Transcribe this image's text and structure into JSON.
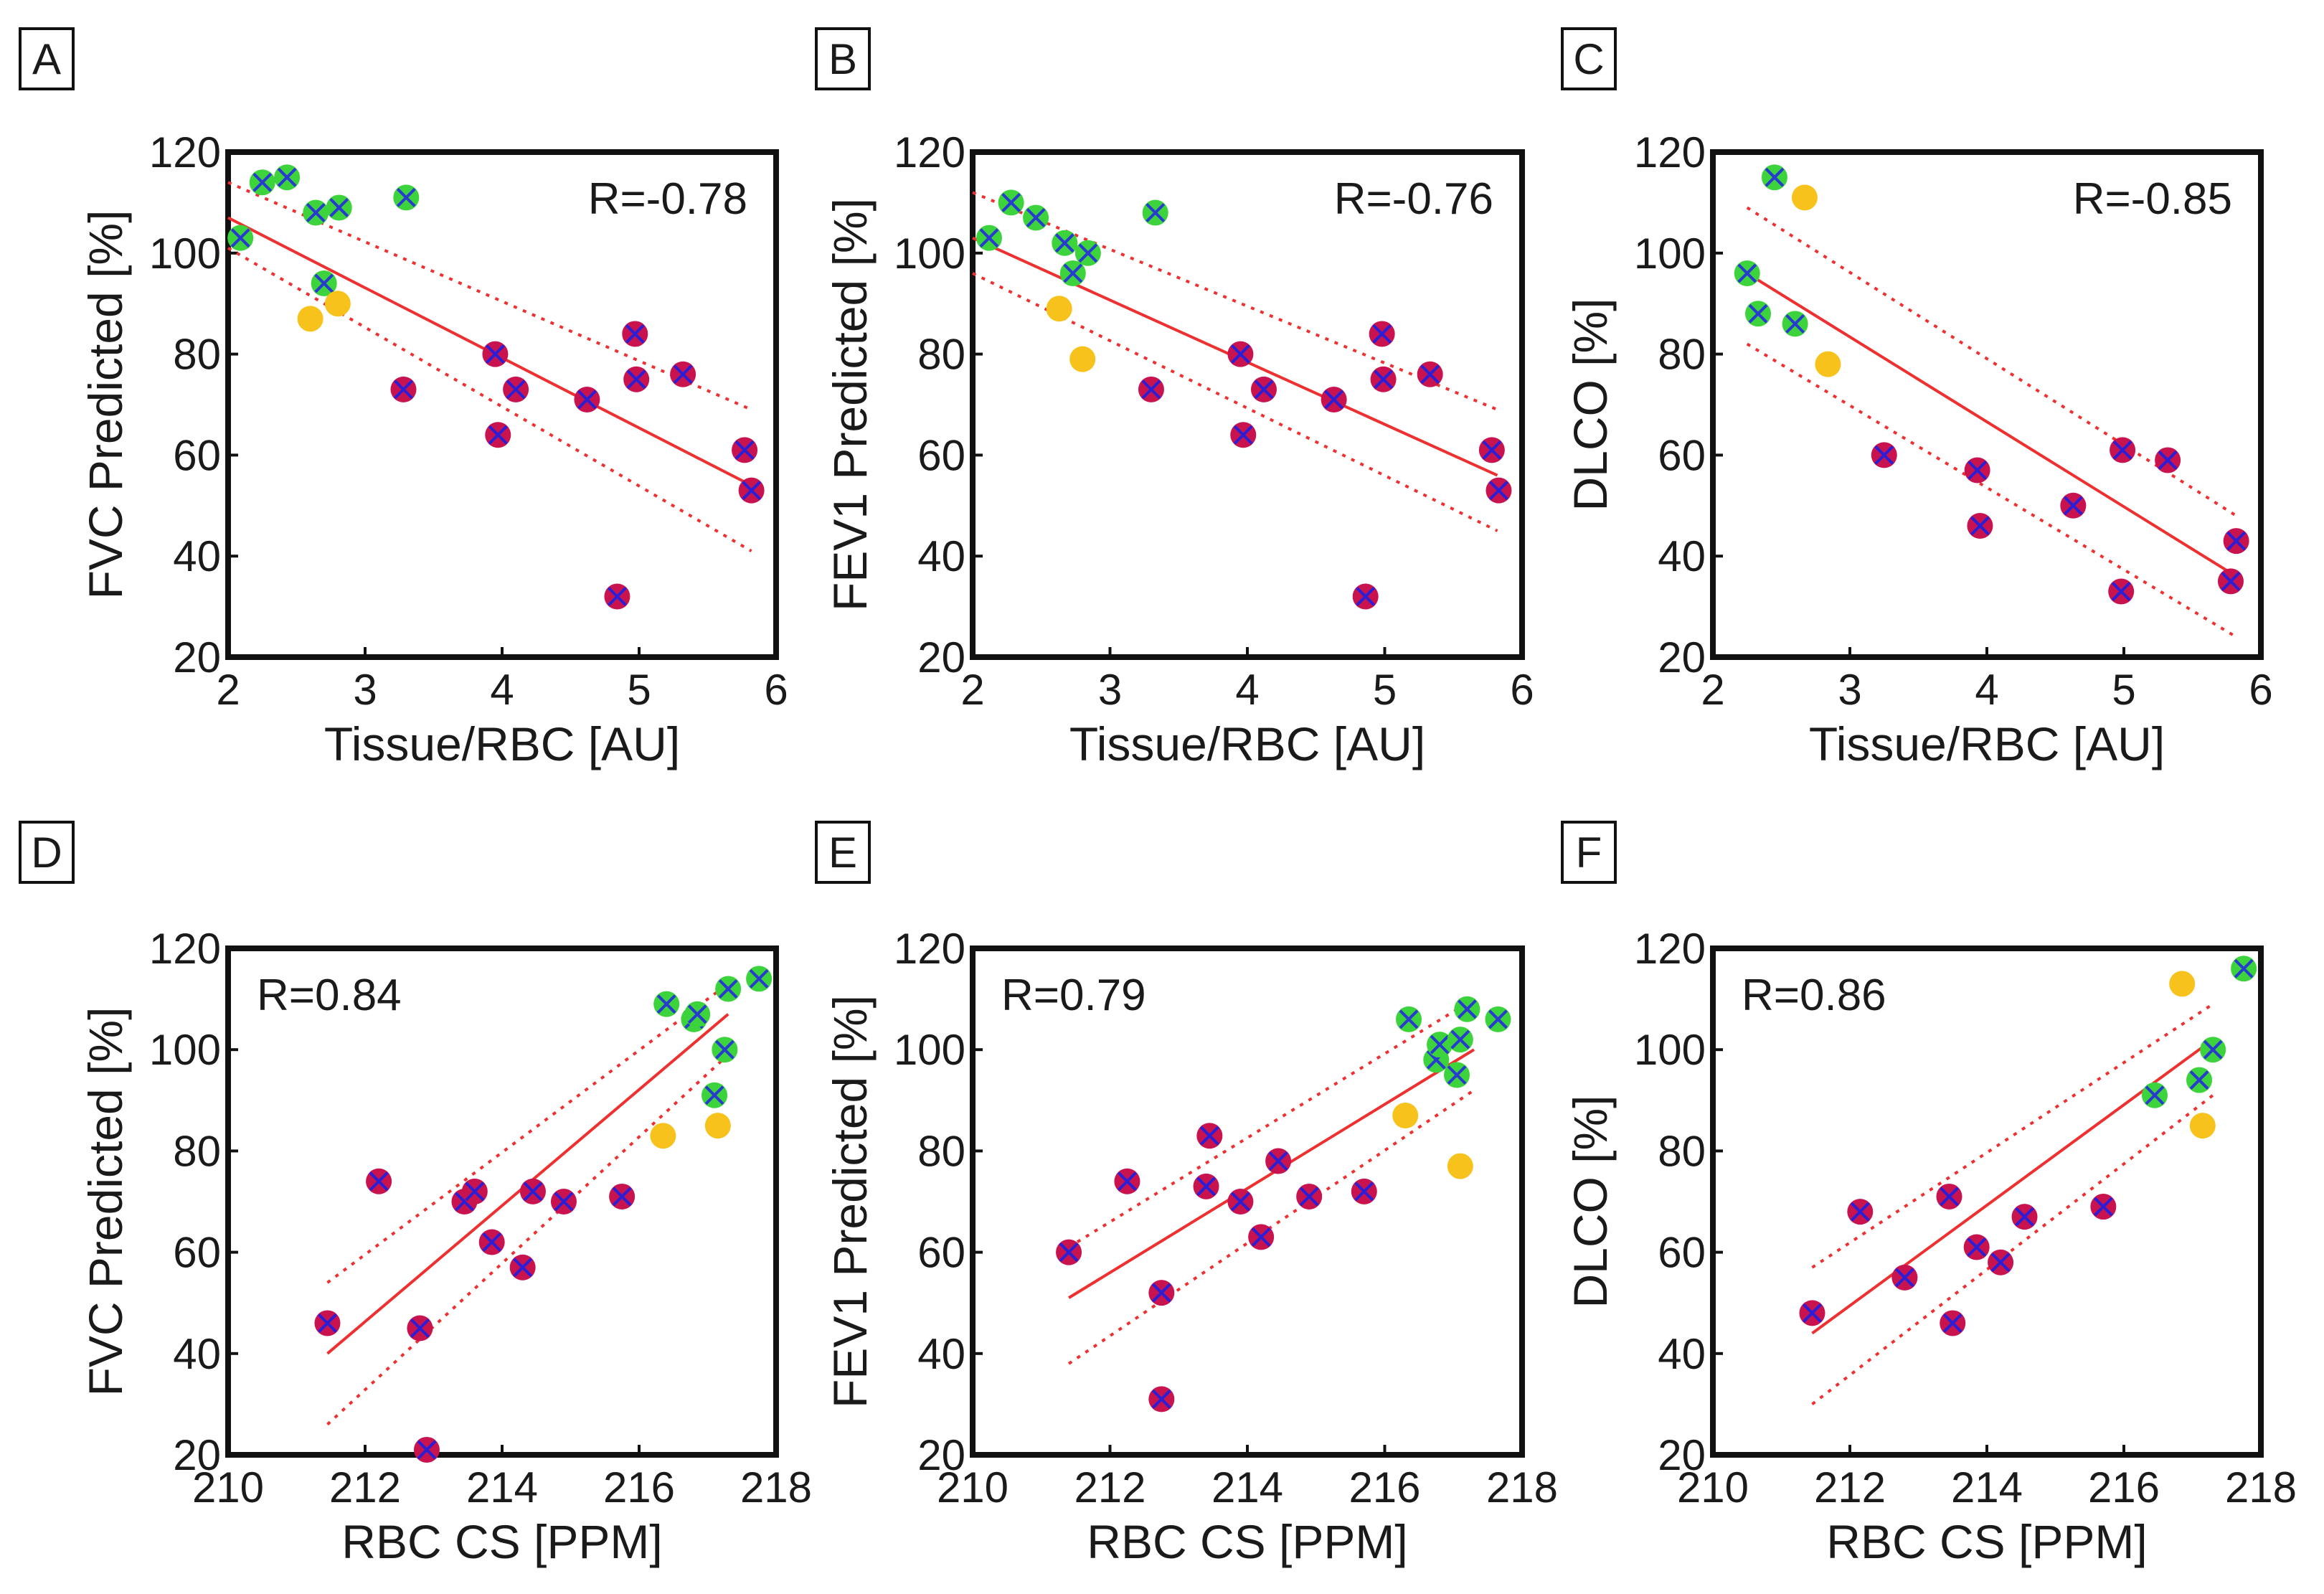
{
  "colors": {
    "red_group": "#c8134f",
    "red_group_cross": "#2a1fd6",
    "green_group": "#3dd33d",
    "green_group_cross": "#283ad0",
    "yellow_group": "#f7c21c",
    "fit_line": "#ee3030",
    "axis": "#111111"
  },
  "chart_data": [
    {
      "panel": "A",
      "type": "scatter",
      "xlabel": "Tissue/RBC [AU]",
      "ylabel": "FVC Predicted [%]",
      "xlim": [
        2,
        6
      ],
      "ylim": [
        20,
        120
      ],
      "xticks": [
        "2",
        "3",
        "4",
        "5",
        "6"
      ],
      "yticks": [
        "20",
        "40",
        "60",
        "80",
        "100",
        "120"
      ],
      "annotation": "R=-0.78",
      "annotation_position": "top-right",
      "fit": {
        "x": [
          2.0,
          5.82
        ],
        "y": [
          107,
          54
        ],
        "ci_upper": [
          114,
          69
        ],
        "ci_lower": [
          101,
          41
        ]
      },
      "series": [
        {
          "name": "red",
          "x": [
            3.28,
            3.95,
            3.97,
            4.1,
            4.62,
            4.84,
            4.97,
            4.98,
            5.32,
            5.77,
            5.82
          ],
          "y": [
            73,
            80,
            64,
            73,
            71,
            32,
            84,
            75,
            76,
            61,
            53
          ]
        },
        {
          "name": "green",
          "x": [
            2.09,
            2.25,
            2.43,
            2.64,
            2.7,
            2.81,
            3.3
          ],
          "y": [
            103,
            114,
            115,
            108,
            94,
            109,
            111
          ]
        },
        {
          "name": "yellow",
          "x": [
            2.6,
            2.8
          ],
          "y": [
            87,
            90
          ]
        }
      ]
    },
    {
      "panel": "B",
      "type": "scatter",
      "xlabel": "Tissue/RBC [AU]",
      "ylabel": "FEV1 Predicted [%]",
      "xlim": [
        2,
        6
      ],
      "ylim": [
        20,
        120
      ],
      "xticks": [
        "2",
        "3",
        "4",
        "5",
        "6"
      ],
      "yticks": [
        "20",
        "40",
        "60",
        "80",
        "100",
        "120"
      ],
      "annotation": "R=-0.76",
      "annotation_position": "top-right",
      "fit": {
        "x": [
          2.0,
          5.82
        ],
        "y": [
          103,
          56
        ],
        "ci_upper": [
          112,
          69
        ],
        "ci_lower": [
          96,
          45
        ]
      },
      "series": [
        {
          "name": "red",
          "x": [
            3.3,
            3.95,
            3.97,
            4.12,
            4.63,
            4.86,
            4.98,
            4.99,
            5.33,
            5.78,
            5.83
          ],
          "y": [
            73,
            80,
            64,
            73,
            71,
            32,
            84,
            75,
            76,
            61,
            53
          ]
        },
        {
          "name": "green",
          "x": [
            2.12,
            2.28,
            2.46,
            2.67,
            2.73,
            2.84,
            3.33
          ],
          "y": [
            103,
            110,
            107,
            102,
            96,
            100,
            108
          ]
        },
        {
          "name": "yellow",
          "x": [
            2.63,
            2.8
          ],
          "y": [
            89,
            79
          ]
        }
      ]
    },
    {
      "panel": "C",
      "type": "scatter",
      "xlabel": "Tissue/RBC [AU]",
      "ylabel": "DLCO [%]",
      "xlim": [
        2,
        6
      ],
      "ylim": [
        20,
        120
      ],
      "xticks": [
        "2",
        "3",
        "4",
        "5",
        "6"
      ],
      "yticks": [
        "20",
        "40",
        "60",
        "80",
        "100",
        "120"
      ],
      "annotation": "R=-0.85",
      "annotation_position": "top-right",
      "fit": {
        "x": [
          2.25,
          5.82
        ],
        "y": [
          96,
          36
        ],
        "ci_upper": [
          109,
          48
        ],
        "ci_lower": [
          82,
          24
        ]
      },
      "series": [
        {
          "name": "red",
          "x": [
            3.25,
            3.93,
            3.95,
            4.63,
            4.98,
            4.99,
            5.32,
            5.78,
            5.82
          ],
          "y": [
            60,
            57,
            46,
            50,
            33,
            61,
            59,
            35,
            43
          ]
        },
        {
          "name": "green",
          "x": [
            2.25,
            2.33,
            2.45,
            2.6
          ],
          "y": [
            96,
            88,
            115,
            86
          ]
        },
        {
          "name": "yellow",
          "x": [
            2.67,
            2.84
          ],
          "y": [
            111,
            78
          ]
        }
      ]
    },
    {
      "panel": "D",
      "type": "scatter",
      "xlabel": "RBC CS [PPM]",
      "ylabel": "FVC Predicted [%]",
      "xlim": [
        210,
        218
      ],
      "ylim": [
        20,
        120
      ],
      "xticks": [
        "210",
        "212",
        "214",
        "216",
        "218"
      ],
      "yticks": [
        "20",
        "40",
        "60",
        "80",
        "100",
        "120"
      ],
      "annotation": "R=0.84",
      "annotation_position": "top-left",
      "fit": {
        "x": [
          211.45,
          217.3
        ],
        "y": [
          40,
          107
        ],
        "ci_upper": [
          54,
          113
        ],
        "ci_lower": [
          26,
          99
        ]
      },
      "series": [
        {
          "name": "red",
          "x": [
            211.45,
            212.2,
            212.8,
            212.9,
            213.45,
            213.6,
            213.85,
            214.3,
            214.45,
            214.9,
            215.75
          ],
          "y": [
            46,
            74,
            45,
            21,
            70,
            72,
            62,
            57,
            72,
            70,
            71
          ]
        },
        {
          "name": "green",
          "x": [
            216.4,
            216.8,
            216.85,
            217.1,
            217.25,
            217.3,
            217.75
          ],
          "y": [
            109,
            106,
            107,
            91,
            100,
            112,
            114
          ]
        },
        {
          "name": "yellow",
          "x": [
            216.35,
            217.15
          ],
          "y": [
            83,
            85
          ]
        }
      ]
    },
    {
      "panel": "E",
      "type": "scatter",
      "xlabel": "RBC CS [PPM]",
      "ylabel": "FEV1 Predicted [%]",
      "xlim": [
        210,
        218
      ],
      "ylim": [
        20,
        120
      ],
      "xticks": [
        "210",
        "212",
        "214",
        "216",
        "218"
      ],
      "yticks": [
        "20",
        "40",
        "60",
        "80",
        "100",
        "120"
      ],
      "annotation": "R=0.79",
      "annotation_position": "top-left",
      "fit": {
        "x": [
          211.4,
          217.3
        ],
        "y": [
          51,
          100
        ],
        "ci_upper": [
          61,
          110
        ],
        "ci_lower": [
          38,
          92
        ]
      },
      "series": [
        {
          "name": "red",
          "x": [
            211.4,
            212.25,
            212.75,
            212.75,
            213.4,
            213.45,
            213.9,
            214.2,
            214.45,
            214.9,
            215.7
          ],
          "y": [
            60,
            74,
            52,
            31,
            73,
            83,
            70,
            63,
            78,
            71,
            72
          ]
        },
        {
          "name": "green",
          "x": [
            216.35,
            216.75,
            216.8,
            217.05,
            217.1,
            217.2,
            217.65
          ],
          "y": [
            106,
            98,
            101,
            95,
            102,
            108,
            106
          ]
        },
        {
          "name": "yellow",
          "x": [
            216.3,
            217.1
          ],
          "y": [
            87,
            77
          ]
        }
      ]
    },
    {
      "panel": "F",
      "type": "scatter",
      "xlabel": "RBC CS [PPM]",
      "ylabel": "DLCO [%]",
      "xlim": [
        210,
        218
      ],
      "ylim": [
        20,
        120
      ],
      "xticks": [
        "210",
        "212",
        "214",
        "216",
        "218"
      ],
      "yticks": [
        "20",
        "40",
        "60",
        "80",
        "100",
        "120"
      ],
      "annotation": "R=0.86",
      "annotation_position": "top-left",
      "fit": {
        "x": [
          211.45,
          217.3
        ],
        "y": [
          44,
          102
        ],
        "ci_upper": [
          57,
          109
        ],
        "ci_lower": [
          30,
          91
        ]
      },
      "series": [
        {
          "name": "red",
          "x": [
            211.45,
            212.15,
            212.8,
            213.45,
            213.5,
            213.85,
            214.2,
            214.55,
            215.7
          ],
          "y": [
            48,
            68,
            55,
            71,
            46,
            61,
            58,
            67,
            69
          ]
        },
        {
          "name": "green",
          "x": [
            216.45,
            217.1,
            217.3,
            217.75
          ],
          "y": [
            91,
            94,
            100,
            116
          ]
        },
        {
          "name": "yellow",
          "x": [
            216.85,
            217.15
          ],
          "y": [
            113,
            85
          ]
        }
      ]
    }
  ]
}
